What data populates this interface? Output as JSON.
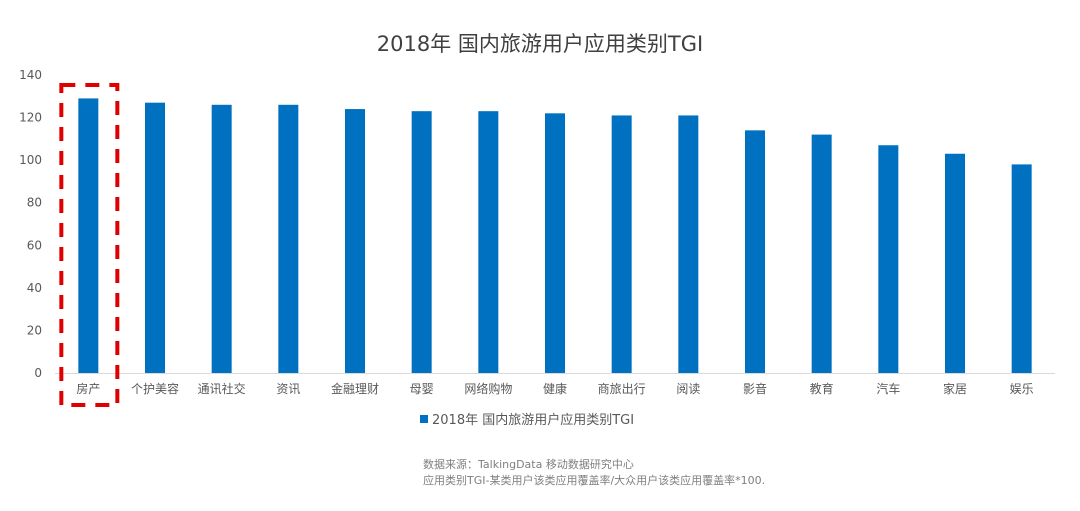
{
  "chart_data": {
    "type": "bar",
    "title": "2018年 国内旅游用户应用类别TGI",
    "categories": [
      "房产",
      "个护美容",
      "通讯社交",
      "资讯",
      "金融理财",
      "母婴",
      "网络购物",
      "健康",
      "商旅出行",
      "阅读",
      "影音",
      "教育",
      "汽车",
      "家居",
      "娱乐"
    ],
    "series": [
      {
        "name": "2018年 国内旅游用户应用类别TGI",
        "values": [
          129,
          127,
          126,
          126,
          124,
          123,
          123,
          122,
          121,
          121,
          114,
          112,
          107,
          103,
          98
        ],
        "color": "#0070c0"
      }
    ],
    "ylim": [
      0,
      140
    ],
    "yticks": [
      0,
      20,
      40,
      60,
      80,
      100,
      120,
      140
    ],
    "grid": false,
    "legend": "bottom",
    "highlight": {
      "category": "房产",
      "style": "red dashed box",
      "color": "#e00000"
    }
  },
  "notes": {
    "source": "数据来源：TalkingData 移动数据研究中心",
    "definition": "应用类别TGI-某类用户该类应用覆盖率/大众用户该类应用覆盖率*100."
  }
}
